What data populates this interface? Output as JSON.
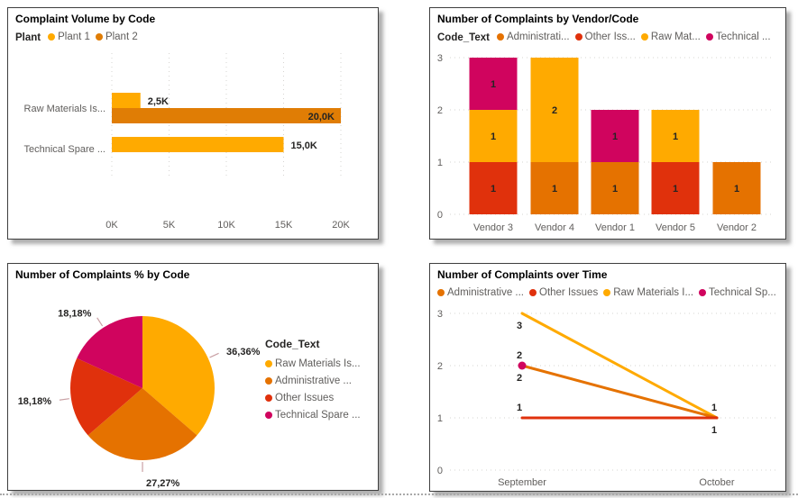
{
  "colors": {
    "amber": "#FFAA00",
    "orange": "#E57200",
    "red": "#E0310C",
    "pink": "#D0045E",
    "plant1": "#FFAA00",
    "plant2": "#E07D05",
    "axis_text": "#605E5C",
    "data_label": "#252423",
    "grid": "#D6D4D2",
    "leader_line": "#C9A0A4"
  },
  "chart_data": [
    {
      "id": "complaint-volume-by-code",
      "type": "bar",
      "orientation": "horizontal",
      "title": "Complaint Volume by Code",
      "legend_title": "Plant",
      "legend_position": "top",
      "grid": true,
      "legend": [
        {
          "label": "Plant 1",
          "color_key": "plant1"
        },
        {
          "label": "Plant 2",
          "color_key": "plant2"
        }
      ],
      "categories": [
        "Raw Materials Is...",
        "Technical Spare ..."
      ],
      "series": [
        {
          "name": "Plant 1",
          "color_key": "plant1",
          "points": [
            {
              "value": 2500,
              "label": "2,5K",
              "label_inside": false
            },
            {
              "value": 15000,
              "label": "15,0K",
              "label_inside": false
            }
          ]
        },
        {
          "name": "Plant 2",
          "color_key": "plant2",
          "points": [
            {
              "value": 20000,
              "label": "20,0K",
              "label_inside": true
            },
            null
          ]
        }
      ],
      "x_ticks": [
        {
          "value": 0,
          "label": "0K"
        },
        {
          "value": 5000,
          "label": "5K"
        },
        {
          "value": 10000,
          "label": "10K"
        },
        {
          "value": 15000,
          "label": "15K"
        },
        {
          "value": 20000,
          "label": "20K"
        }
      ],
      "xlim": [
        0,
        20000
      ]
    },
    {
      "id": "complaints-by-vendor-code",
      "type": "bar",
      "stacked": true,
      "title": "Number of Complaints by Vendor/Code",
      "legend_title": "Code_Text",
      "legend_position": "top",
      "grid": true,
      "legend": [
        {
          "label": "Administrati...",
          "color_key": "orange"
        },
        {
          "label": "Other Iss...",
          "color_key": "red"
        },
        {
          "label": "Raw Mat...",
          "color_key": "amber"
        },
        {
          "label": "Technical ...",
          "color_key": "pink"
        }
      ],
      "categories": [
        "Vendor 3",
        "Vendor 4",
        "Vendor 1",
        "Vendor 5",
        "Vendor 2"
      ],
      "stacks": [
        [
          {
            "color_key": "red",
            "value": 1,
            "label": "1"
          },
          {
            "color_key": "amber",
            "value": 1,
            "label": "1"
          },
          {
            "color_key": "pink",
            "value": 1,
            "label": "1"
          }
        ],
        [
          {
            "color_key": "orange",
            "value": 1,
            "label": "1"
          },
          {
            "color_key": "amber",
            "value": 2,
            "label": "2"
          }
        ],
        [
          {
            "color_key": "orange",
            "value": 1,
            "label": "1"
          },
          {
            "color_key": "pink",
            "value": 1,
            "label": "1"
          }
        ],
        [
          {
            "color_key": "red",
            "value": 1,
            "label": "1"
          },
          {
            "color_key": "amber",
            "value": 1,
            "label": "1"
          }
        ],
        [
          {
            "color_key": "orange",
            "value": 1,
            "label": "1"
          }
        ]
      ],
      "y_ticks": [
        0,
        1,
        2,
        3
      ],
      "ylim": [
        0,
        3
      ]
    },
    {
      "id": "complaints-pct-by-code",
      "type": "pie",
      "title": "Number of Complaints % by Code",
      "legend_title": "Code_Text",
      "legend_position": "right",
      "legend": [
        {
          "label": "Raw Materials Is...",
          "color_key": "amber"
        },
        {
          "label": "Administrative ...",
          "color_key": "orange"
        },
        {
          "label": "Other Issues",
          "color_key": "red"
        },
        {
          "label": "Technical Spare ...",
          "color_key": "pink"
        }
      ],
      "slices": [
        {
          "label": "Raw Materials Is...",
          "pct": 36.36,
          "pct_label": "36,36%",
          "color_key": "amber"
        },
        {
          "label": "Administrative ...",
          "pct": 27.27,
          "pct_label": "27,27%",
          "color_key": "orange"
        },
        {
          "label": "Other Issues",
          "pct": 18.18,
          "pct_label": "18,18%",
          "color_key": "red"
        },
        {
          "label": "Technical Spare ...",
          "pct": 18.18,
          "pct_label": "18,18%",
          "color_key": "pink"
        }
      ]
    },
    {
      "id": "complaints-over-time",
      "type": "line",
      "title": "Number of Complaints over Time",
      "legend_position": "top",
      "grid": true,
      "legend": [
        {
          "label": "Administrative ...",
          "color_key": "orange"
        },
        {
          "label": "Other Issues",
          "color_key": "red"
        },
        {
          "label": "Raw Materials I...",
          "color_key": "amber"
        },
        {
          "label": "Technical Sp...",
          "color_key": "pink"
        }
      ],
      "x_categories": [
        "September",
        "October"
      ],
      "series": [
        {
          "name": "Raw Materials I...",
          "color_key": "amber",
          "values": [
            3,
            1
          ],
          "marker": false
        },
        {
          "name": "Administrative ...",
          "color_key": "orange",
          "values": [
            2,
            1
          ],
          "marker": false
        },
        {
          "name": "Other Issues",
          "color_key": "red",
          "values": [
            1,
            1
          ],
          "marker": false
        },
        {
          "name": "Technical Sp...",
          "color_key": "pink",
          "values": [
            2,
            null
          ],
          "marker": true
        }
      ],
      "point_labels": [
        {
          "text": "3",
          "x_idx": 0,
          "y_value": 3,
          "side": "below"
        },
        {
          "text": "2",
          "x_idx": 0,
          "y_value": 2,
          "side": "above"
        },
        {
          "text": "2",
          "x_idx": 0,
          "y_value": 2,
          "side": "below"
        },
        {
          "text": "1",
          "x_idx": 0,
          "y_value": 1,
          "side": "above"
        },
        {
          "text": "1",
          "x_idx": 1,
          "y_value": 1,
          "side": "above"
        },
        {
          "text": "1",
          "x_idx": 1,
          "y_value": 1,
          "side": "below"
        }
      ],
      "y_ticks": [
        0,
        1,
        2,
        3
      ],
      "ylim": [
        0,
        3
      ]
    }
  ]
}
